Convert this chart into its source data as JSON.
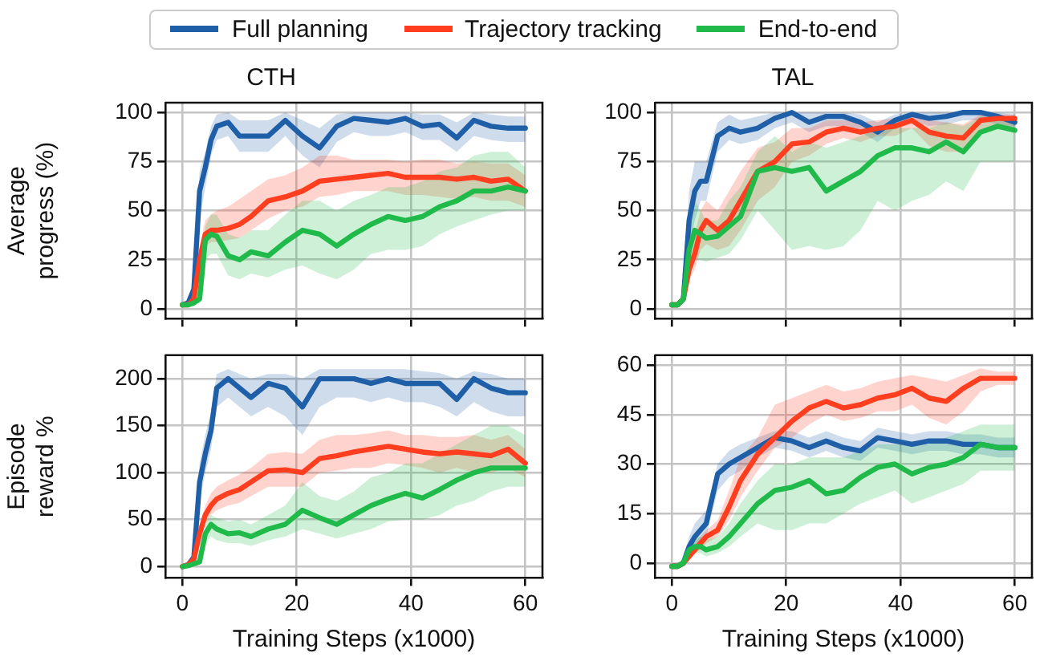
{
  "chart_data": [
    {
      "type": "line",
      "title": "CTH",
      "ylabel": "Average progress (%)",
      "xlim": [
        -3,
        63
      ],
      "xticks": [
        0,
        20,
        40,
        60
      ],
      "ylim": [
        -5,
        105
      ],
      "yticks": [
        0,
        25,
        50,
        75,
        100
      ],
      "grid": true,
      "legend": "top",
      "tick_labels": "y",
      "x": [
        0,
        1,
        2,
        3,
        4,
        5,
        6,
        8,
        10,
        12,
        15,
        18,
        21,
        24,
        27,
        30,
        33,
        36,
        39,
        42,
        45,
        48,
        51,
        54,
        57,
        60
      ],
      "series": [
        {
          "name": "Full planning",
          "color": "#1f5fa8",
          "values": [
            2,
            3,
            10,
            60,
            72,
            86,
            93,
            95,
            88,
            88,
            88,
            96,
            88,
            82,
            93,
            97,
            96,
            95,
            97,
            93,
            94,
            87,
            96,
            93,
            92,
            92
          ],
          "lower": [
            1,
            2,
            5,
            45,
            62,
            78,
            86,
            88,
            80,
            80,
            80,
            88,
            78,
            72,
            85,
            90,
            88,
            88,
            90,
            86,
            86,
            80,
            88,
            86,
            85,
            85
          ],
          "upper": [
            3,
            4,
            15,
            70,
            80,
            93,
            99,
            100,
            96,
            96,
            96,
            100,
            96,
            92,
            99,
            100,
            100,
            100,
            100,
            99,
            99,
            95,
            100,
            99,
            98,
            98
          ]
        },
        {
          "name": "Trajectory tracking",
          "color": "#ff3d1f",
          "values": [
            2,
            2,
            5,
            25,
            38,
            40,
            40,
            41,
            43,
            47,
            55,
            57,
            60,
            65,
            66,
            67,
            68,
            69,
            67,
            67,
            67,
            66,
            67,
            65,
            66,
            60
          ],
          "lower": [
            1,
            1,
            3,
            18,
            32,
            34,
            34,
            35,
            36,
            40,
            46,
            50,
            52,
            57,
            58,
            60,
            60,
            60,
            58,
            58,
            57,
            56,
            57,
            55,
            55,
            52
          ],
          "upper": [
            3,
            3,
            8,
            32,
            45,
            48,
            50,
            52,
            56,
            60,
            66,
            68,
            72,
            78,
            78,
            76,
            76,
            76,
            75,
            76,
            76,
            74,
            75,
            74,
            74,
            68
          ]
        },
        {
          "name": "End-to-end",
          "color": "#1fba4a",
          "values": [
            2,
            2,
            3,
            5,
            35,
            38,
            37,
            27,
            25,
            29,
            27,
            34,
            40,
            38,
            32,
            38,
            43,
            47,
            45,
            47,
            52,
            55,
            60,
            60,
            62,
            60
          ],
          "lower": [
            1,
            1,
            2,
            3,
            25,
            28,
            28,
            17,
            15,
            18,
            16,
            20,
            22,
            18,
            15,
            20,
            28,
            30,
            30,
            32,
            38,
            42,
            45,
            48,
            50,
            50
          ],
          "upper": [
            3,
            3,
            5,
            8,
            42,
            48,
            48,
            38,
            36,
            40,
            40,
            48,
            55,
            55,
            50,
            55,
            58,
            62,
            62,
            65,
            70,
            72,
            78,
            80,
            80,
            72
          ]
        }
      ]
    },
    {
      "type": "line",
      "title": "TAL",
      "xlim": [
        -3,
        63
      ],
      "xticks": [
        0,
        20,
        40,
        60
      ],
      "ylim": [
        -5,
        105
      ],
      "yticks": [
        0,
        25,
        50,
        75,
        100
      ],
      "grid": true,
      "tick_labels": "y",
      "x": [
        0,
        1,
        2,
        3,
        4,
        5,
        6,
        8,
        10,
        12,
        15,
        18,
        21,
        24,
        27,
        30,
        33,
        36,
        39,
        42,
        45,
        48,
        51,
        54,
        57,
        60
      ],
      "series": [
        {
          "name": "Full planning",
          "color": "#1f5fa8",
          "values": [
            2,
            2,
            5,
            45,
            60,
            65,
            65,
            88,
            92,
            90,
            92,
            97,
            100,
            95,
            98,
            98,
            95,
            90,
            96,
            99,
            97,
            98,
            100,
            100,
            98,
            95
          ],
          "lower": [
            1,
            1,
            3,
            30,
            45,
            55,
            55,
            80,
            86,
            84,
            86,
            92,
            95,
            90,
            93,
            93,
            90,
            85,
            92,
            96,
            93,
            94,
            96,
            96,
            94,
            90
          ],
          "upper": [
            3,
            3,
            8,
            60,
            75,
            75,
            75,
            95,
            99,
            96,
            98,
            100,
            100,
            100,
            100,
            100,
            99,
            95,
            99,
            100,
            100,
            100,
            100,
            100,
            100,
            99
          ]
        },
        {
          "name": "Trajectory tracking",
          "color": "#ff3d1f",
          "values": [
            2,
            2,
            5,
            20,
            28,
            40,
            45,
            40,
            45,
            55,
            70,
            75,
            84,
            85,
            90,
            92,
            90,
            92,
            93,
            96,
            90,
            88,
            87,
            96,
            97,
            97
          ],
          "lower": [
            1,
            1,
            3,
            15,
            20,
            30,
            33,
            30,
            32,
            40,
            55,
            62,
            75,
            78,
            84,
            87,
            85,
            88,
            88,
            92,
            83,
            80,
            80,
            90,
            92,
            93
          ],
          "upper": [
            3,
            3,
            8,
            28,
            38,
            50,
            55,
            50,
            60,
            70,
            82,
            85,
            92,
            92,
            96,
            96,
            95,
            96,
            97,
            99,
            96,
            95,
            94,
            99,
            99,
            99
          ]
        },
        {
          "name": "End-to-end",
          "color": "#1fba4a",
          "values": [
            2,
            2,
            5,
            30,
            40,
            38,
            36,
            37,
            42,
            47,
            70,
            72,
            70,
            72,
            60,
            65,
            70,
            78,
            82,
            82,
            80,
            85,
            80,
            90,
            93,
            91
          ],
          "lower": [
            1,
            1,
            3,
            20,
            25,
            25,
            24,
            26,
            28,
            35,
            50,
            40,
            30,
            32,
            30,
            32,
            40,
            55,
            50,
            55,
            58,
            65,
            60,
            75,
            75,
            75
          ],
          "upper": [
            3,
            3,
            8,
            40,
            55,
            50,
            45,
            45,
            55,
            62,
            80,
            88,
            80,
            85,
            82,
            85,
            88,
            92,
            92,
            92,
            92,
            95,
            93,
            98,
            98,
            97
          ]
        }
      ]
    },
    {
      "type": "line",
      "xlabel": "Training Steps (x1000)",
      "ylabel": "Episode reward %",
      "xlim": [
        -3,
        63
      ],
      "xticks": [
        0,
        20,
        40,
        60
      ],
      "ylim": [
        -12,
        225
      ],
      "yticks": [
        0,
        50,
        100,
        150,
        200
      ],
      "grid": true,
      "x": [
        0,
        1,
        2,
        3,
        4,
        5,
        6,
        8,
        10,
        12,
        15,
        18,
        21,
        24,
        27,
        30,
        33,
        36,
        39,
        42,
        45,
        48,
        51,
        54,
        57,
        60
      ],
      "series": [
        {
          "name": "Full planning",
          "color": "#1f5fa8",
          "values": [
            0,
            2,
            10,
            90,
            120,
            145,
            190,
            200,
            190,
            180,
            195,
            190,
            170,
            200,
            200,
            200,
            195,
            200,
            195,
            195,
            195,
            178,
            200,
            190,
            185,
            185
          ],
          "lower": [
            0,
            1,
            5,
            70,
            100,
            125,
            170,
            180,
            170,
            160,
            170,
            160,
            140,
            170,
            180,
            180,
            175,
            180,
            175,
            175,
            170,
            160,
            175,
            165,
            160,
            160
          ],
          "upper": [
            1,
            3,
            15,
            110,
            140,
            165,
            205,
            210,
            205,
            200,
            205,
            205,
            200,
            210,
            210,
            210,
            210,
            210,
            210,
            208,
            206,
            200,
            208,
            205,
            200,
            200
          ]
        },
        {
          "name": "Trajectory tracking",
          "color": "#ff3d1f",
          "values": [
            0,
            2,
            8,
            35,
            55,
            65,
            72,
            78,
            82,
            90,
            102,
            103,
            100,
            115,
            118,
            122,
            125,
            128,
            125,
            122,
            120,
            122,
            120,
            118,
            125,
            110
          ],
          "lower": [
            0,
            1,
            4,
            25,
            45,
            55,
            60,
            65,
            68,
            75,
            85,
            85,
            85,
            100,
            102,
            105,
            105,
            110,
            108,
            105,
            100,
            105,
            100,
            100,
            105,
            95
          ],
          "upper": [
            1,
            3,
            12,
            45,
            65,
            78,
            85,
            92,
            98,
            105,
            120,
            122,
            120,
            135,
            140,
            140,
            142,
            145,
            140,
            140,
            138,
            138,
            140,
            135,
            140,
            125
          ]
        },
        {
          "name": "End-to-end",
          "color": "#1fba4a",
          "values": [
            0,
            1,
            3,
            5,
            35,
            45,
            40,
            35,
            36,
            32,
            40,
            45,
            60,
            52,
            45,
            55,
            65,
            72,
            78,
            73,
            82,
            92,
            100,
            105,
            105,
            105
          ],
          "lower": [
            0,
            0,
            2,
            3,
            25,
            32,
            28,
            25,
            25,
            22,
            28,
            32,
            40,
            35,
            30,
            35,
            40,
            48,
            50,
            50,
            55,
            65,
            70,
            80,
            85,
            85
          ],
          "upper": [
            1,
            2,
            5,
            8,
            45,
            55,
            52,
            48,
            50,
            45,
            55,
            65,
            90,
            75,
            70,
            80,
            95,
            100,
            110,
            110,
            120,
            130,
            140,
            150,
            150,
            140
          ]
        }
      ]
    },
    {
      "type": "line",
      "xlabel": "Training Steps (x1000)",
      "xlim": [
        -3,
        63
      ],
      "xticks": [
        0,
        20,
        40,
        60
      ],
      "ylim": [
        -4.5,
        63
      ],
      "yticks": [
        0,
        15,
        30,
        45,
        60
      ],
      "grid": true,
      "x": [
        0,
        1,
        2,
        3,
        4,
        5,
        6,
        8,
        10,
        12,
        15,
        18,
        21,
        24,
        27,
        30,
        33,
        36,
        39,
        42,
        45,
        48,
        51,
        54,
        57,
        60
      ],
      "series": [
        {
          "name": "Full planning",
          "color": "#1f5fa8",
          "values": [
            -1,
            -1,
            0,
            5,
            8,
            10,
            12,
            27,
            30,
            32,
            35,
            38,
            37,
            35,
            37,
            35,
            34,
            38,
            37,
            36,
            37,
            37,
            36,
            36,
            35,
            35
          ],
          "lower": [
            -1,
            -1,
            -1,
            3,
            5,
            7,
            8,
            22,
            26,
            28,
            32,
            35,
            34,
            32,
            34,
            32,
            31,
            35,
            34,
            33,
            34,
            34,
            33,
            33,
            32,
            32
          ],
          "upper": [
            0,
            0,
            1,
            8,
            12,
            14,
            16,
            30,
            34,
            36,
            38,
            40,
            40,
            38,
            40,
            38,
            37,
            41,
            40,
            39,
            40,
            40,
            39,
            39,
            38,
            38
          ]
        },
        {
          "name": "Trajectory tracking",
          "color": "#ff3d1f",
          "values": [
            -1,
            -1,
            0,
            2,
            4,
            6,
            8,
            10,
            17,
            25,
            33,
            38,
            43,
            47,
            49,
            47,
            48,
            50,
            51,
            53,
            50,
            49,
            53,
            56,
            56,
            56
          ],
          "lower": [
            -1,
            -1,
            -1,
            1,
            3,
            4,
            6,
            8,
            13,
            20,
            28,
            35,
            38,
            42,
            45,
            43,
            44,
            46,
            46,
            48,
            44,
            42,
            46,
            52,
            54,
            54
          ],
          "upper": [
            0,
            0,
            1,
            3,
            6,
            8,
            10,
            13,
            22,
            32,
            38,
            48,
            50,
            52,
            54,
            52,
            53,
            55,
            56,
            57,
            56,
            55,
            57,
            59,
            58,
            58
          ]
        },
        {
          "name": "End-to-end",
          "color": "#1fba4a",
          "values": [
            -1,
            -1,
            0,
            4,
            5,
            5,
            4,
            5,
            8,
            12,
            18,
            22,
            23,
            25,
            21,
            22,
            26,
            29,
            30,
            27,
            29,
            30,
            32,
            36,
            35,
            35
          ],
          "lower": [
            -1,
            -1,
            -1,
            2,
            3,
            3,
            2,
            3,
            5,
            8,
            12,
            10,
            10,
            12,
            12,
            15,
            18,
            20,
            22,
            18,
            20,
            22,
            24,
            28,
            28,
            28
          ],
          "upper": [
            0,
            0,
            1,
            6,
            8,
            8,
            7,
            8,
            12,
            18,
            25,
            30,
            30,
            32,
            32,
            32,
            34,
            36,
            36,
            36,
            36,
            38,
            40,
            42,
            42,
            42
          ]
        }
      ]
    }
  ]
}
